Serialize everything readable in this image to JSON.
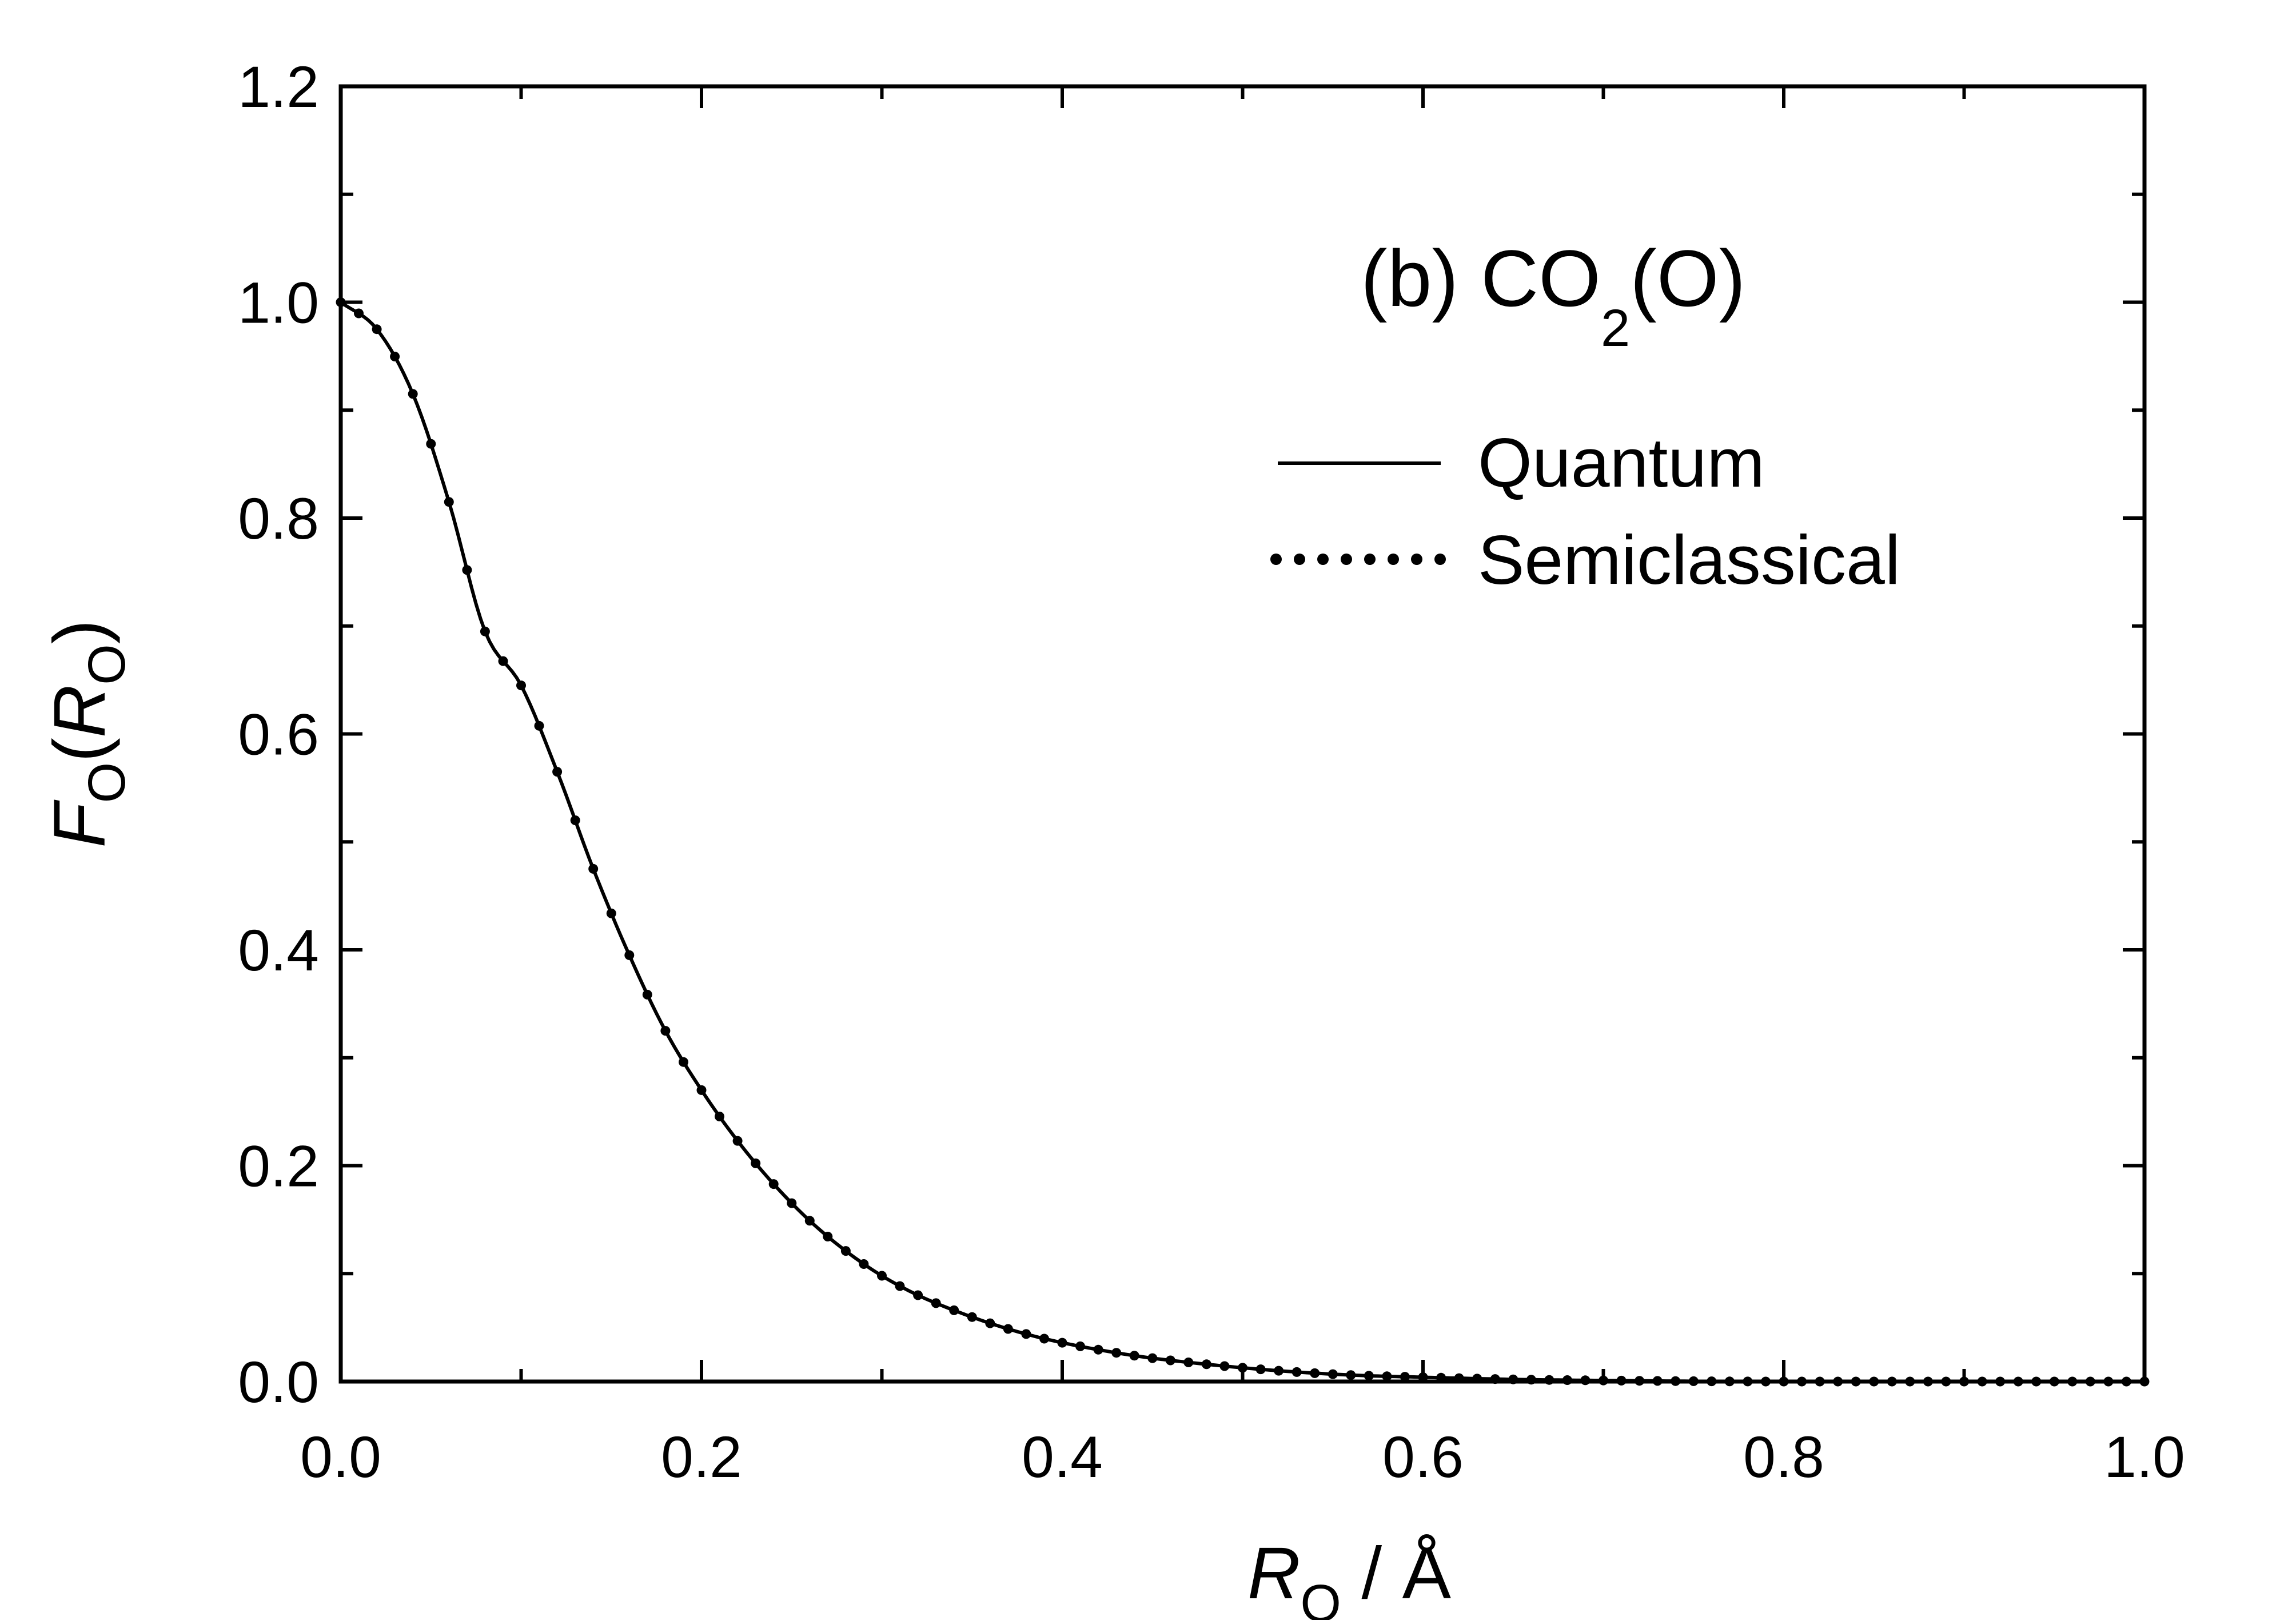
{
  "chart_data": {
    "type": "line",
    "annotation": {
      "prefix": "(b) CO",
      "subscript": "2",
      "suffix": "(O)"
    },
    "xlabel": {
      "symbol": "R",
      "subscript": "O",
      "unit": " / Å"
    },
    "ylabel": {
      "symbol": "F",
      "subscript": "O",
      "open": "(",
      "arg": "R",
      "arg_subscript": "O",
      "close": ")"
    },
    "xlim": [
      0.0,
      1.0
    ],
    "ylim": [
      0.0,
      1.2
    ],
    "xticks": [
      "0.0",
      "0.2",
      "0.4",
      "0.6",
      "0.8",
      "1.0"
    ],
    "yticks": [
      "0.0",
      "0.2",
      "0.4",
      "0.6",
      "0.8",
      "1.0",
      "1.2"
    ],
    "grid": false,
    "legend_position": "top-right",
    "series": [
      {
        "name": "Quantum",
        "style": "solid",
        "color": "#000000",
        "x": [
          0.0,
          0.02,
          0.04,
          0.06,
          0.08,
          0.1,
          0.12,
          0.14,
          0.16,
          0.18,
          0.2,
          0.22,
          0.24,
          0.26,
          0.28,
          0.3,
          0.32,
          0.34,
          0.36,
          0.38,
          0.4,
          0.44,
          0.48,
          0.52,
          0.56,
          0.6,
          0.65,
          0.7,
          0.8,
          0.9,
          1.0
        ],
        "y": [
          1.0,
          0.975,
          0.915,
          0.815,
          0.695,
          0.645,
          0.565,
          0.475,
          0.395,
          0.325,
          0.27,
          0.223,
          0.183,
          0.149,
          0.121,
          0.098,
          0.08,
          0.066,
          0.054,
          0.044,
          0.036,
          0.024,
          0.016,
          0.01,
          0.006,
          0.004,
          0.002,
          0.001,
          0.0,
          0.0,
          0.0
        ]
      },
      {
        "name": "Semiclassical",
        "style": "dotted",
        "color": "#000000",
        "x": [
          0.0,
          0.02,
          0.04,
          0.06,
          0.08,
          0.1,
          0.12,
          0.14,
          0.16,
          0.18,
          0.2,
          0.22,
          0.24,
          0.26,
          0.28,
          0.3,
          0.32,
          0.34,
          0.36,
          0.38,
          0.4,
          0.44,
          0.48,
          0.52,
          0.56,
          0.6,
          0.65,
          0.7,
          0.8,
          0.9,
          1.0
        ],
        "y": [
          1.0,
          0.975,
          0.915,
          0.815,
          0.695,
          0.645,
          0.565,
          0.475,
          0.395,
          0.325,
          0.27,
          0.223,
          0.183,
          0.149,
          0.121,
          0.098,
          0.08,
          0.066,
          0.054,
          0.044,
          0.036,
          0.024,
          0.016,
          0.01,
          0.006,
          0.004,
          0.002,
          0.001,
          0.0,
          0.0,
          0.0
        ]
      }
    ]
  }
}
